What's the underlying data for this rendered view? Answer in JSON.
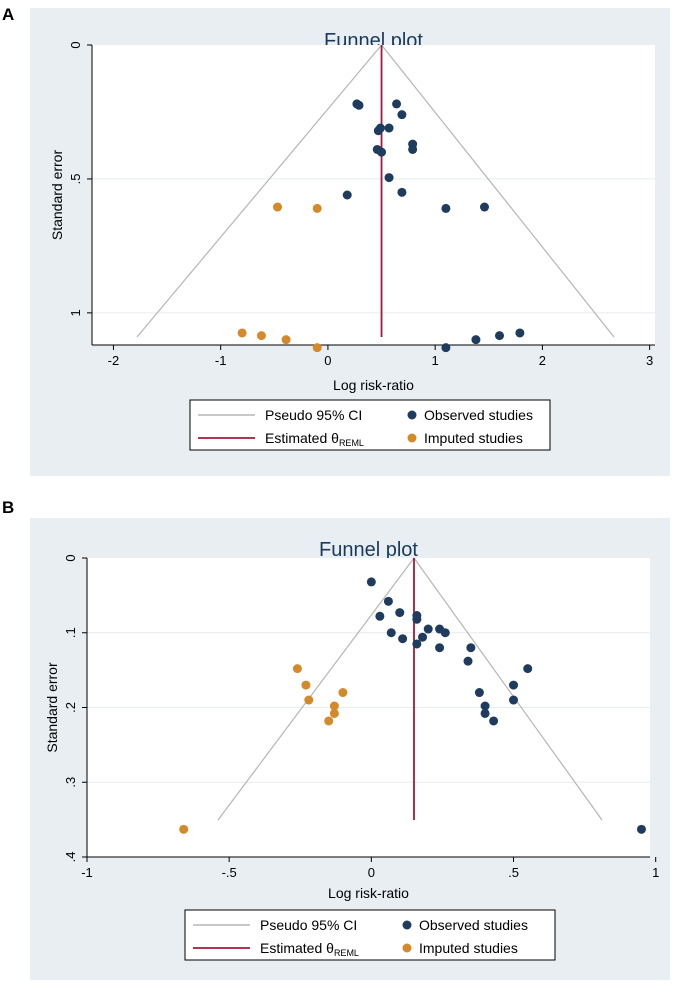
{
  "chart_data": [
    {
      "panel": "A",
      "type": "scatter",
      "title": "Funnel plot",
      "xlabel": "Log risk-ratio",
      "ylabel": "Standard error",
      "xlim": [
        -2.2,
        3.05
      ],
      "ylim": [
        0,
        1.12
      ],
      "y_inverted": true,
      "x_ticks": [
        -2,
        -1,
        0,
        1,
        2,
        3
      ],
      "x_tick_labels": [
        "-2",
        "-1",
        "0",
        "1",
        "2",
        "3"
      ],
      "y_ticks": [
        0,
        0.5,
        1
      ],
      "y_tick_labels": [
        "0",
        ".5",
        "1"
      ],
      "theta": 0.5,
      "ci_bottom_se": 1.12,
      "legend": {
        "ci_label": "Pseudo 95% CI",
        "est_label": "Estimated θ",
        "est_sub": "REML",
        "obs_label": "Observed studies",
        "imp_label": "Imputed studies"
      },
      "series": [
        {
          "name": "Observed studies",
          "color": "#1f3b5e",
          "points": [
            [
              0.27,
              0.22
            ],
            [
              0.29,
              0.225
            ],
            [
              0.64,
              0.22
            ],
            [
              0.69,
              0.26
            ],
            [
              0.57,
              0.31
            ],
            [
              0.49,
              0.31
            ],
            [
              0.47,
              0.32
            ],
            [
              0.79,
              0.37
            ],
            [
              0.79,
              0.39
            ],
            [
              0.46,
              0.39
            ],
            [
              0.5,
              0.4
            ],
            [
              0.57,
              0.495
            ],
            [
              0.69,
              0.55
            ],
            [
              0.18,
              0.56
            ],
            [
              1.1,
              0.61
            ],
            [
              1.46,
              0.605
            ],
            [
              1.1,
              1.13
            ],
            [
              1.38,
              1.1
            ],
            [
              1.6,
              1.085
            ],
            [
              1.79,
              1.075
            ]
          ]
        },
        {
          "name": "Imputed studies",
          "color": "#d4892a",
          "points": [
            [
              -0.47,
              0.605
            ],
            [
              -0.1,
              0.61
            ],
            [
              -0.8,
              1.075
            ],
            [
              -0.62,
              1.085
            ],
            [
              -0.39,
              1.1
            ],
            [
              -0.1,
              1.13
            ]
          ]
        }
      ]
    },
    {
      "panel": "B",
      "type": "scatter",
      "title": "Funnel plot",
      "xlabel": "Log risk-ratio",
      "ylabel": "Standard error",
      "xlim": [
        -1.0,
        0.98
      ],
      "ylim": [
        0,
        0.4
      ],
      "y_inverted": true,
      "x_ticks": [
        -1,
        -0.5,
        0,
        0.5,
        1
      ],
      "x_tick_labels": [
        "-1",
        "-.5",
        "0",
        ".5",
        "1"
      ],
      "y_ticks": [
        0,
        0.1,
        0.2,
        0.3,
        0.4
      ],
      "y_tick_labels": [
        "0",
        ".1",
        ".2",
        ".3",
        ".4"
      ],
      "theta": 0.15,
      "ci_bottom_se": 0.363,
      "legend": {
        "ci_label": "Pseudo 95% CI",
        "est_label": "Estimated θ",
        "est_sub": "REML",
        "obs_label": "Observed studies",
        "imp_label": "Imputed studies"
      },
      "series": [
        {
          "name": "Observed studies",
          "color": "#1f3b5e",
          "points": [
            [
              0.0,
              0.032
            ],
            [
              0.06,
              0.058
            ],
            [
              0.03,
              0.078
            ],
            [
              0.1,
              0.073
            ],
            [
              0.16,
              0.077
            ],
            [
              0.16,
              0.082
            ],
            [
              0.2,
              0.095
            ],
            [
              0.24,
              0.095
            ],
            [
              0.26,
              0.1
            ],
            [
              0.07,
              0.1
            ],
            [
              0.11,
              0.108
            ],
            [
              0.18,
              0.106
            ],
            [
              0.16,
              0.115
            ],
            [
              0.24,
              0.12
            ],
            [
              0.35,
              0.12
            ],
            [
              0.34,
              0.138
            ],
            [
              0.55,
              0.148
            ],
            [
              0.5,
              0.17
            ],
            [
              0.5,
              0.19
            ],
            [
              0.38,
              0.18
            ],
            [
              0.4,
              0.198
            ],
            [
              0.4,
              0.208
            ],
            [
              0.43,
              0.218
            ],
            [
              0.95,
              0.363
            ]
          ]
        },
        {
          "name": "Imputed studies",
          "color": "#d4892a",
          "points": [
            [
              -0.26,
              0.148
            ],
            [
              -0.23,
              0.17
            ],
            [
              -0.22,
              0.19
            ],
            [
              -0.1,
              0.18
            ],
            [
              -0.13,
              0.198
            ],
            [
              -0.13,
              0.208
            ],
            [
              -0.15,
              0.218
            ],
            [
              -0.66,
              0.363
            ]
          ]
        }
      ]
    }
  ]
}
